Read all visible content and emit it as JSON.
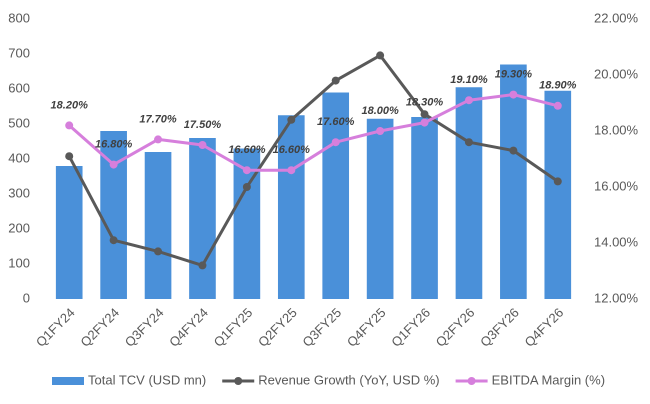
{
  "chart_data": {
    "type": "combo",
    "categories": [
      "Q1FY24",
      "Q2FY24",
      "Q3FY24",
      "Q4FY24",
      "Q1FY25",
      "Q2FY25",
      "Q3FY25",
      "Q4FY25",
      "Q1FY26",
      "Q2FY26",
      "Q3FY26",
      "Q4FY26"
    ],
    "series": [
      {
        "name": "Total TCV (USD mn)",
        "type": "bar",
        "color": "#4a90d9",
        "values": [
          380,
          480,
          420,
          460,
          430,
          525,
          590,
          515,
          520,
          605,
          670,
          595
        ]
      },
      {
        "name": "Revenue Growth (YoY, USD %)",
        "type": "line",
        "axis": "y2",
        "color": "#595959",
        "values": [
          17.1,
          14.1,
          13.7,
          13.2,
          16.0,
          18.4,
          19.8,
          20.7,
          18.6,
          17.6,
          17.3,
          16.2
        ]
      },
      {
        "name": "EBITDA Margin (%)",
        "type": "line",
        "axis": "y2",
        "color": "#d67fdc",
        "values": [
          18.2,
          16.8,
          17.7,
          17.5,
          16.6,
          16.6,
          17.6,
          18.0,
          18.3,
          19.1,
          19.3,
          18.9
        ],
        "value_labels": [
          "18.20%",
          "16.80%",
          "17.70%",
          "17.50%",
          "16.60%",
          "16.60%",
          "17.60%",
          "18.00%",
          "18.30%",
          "19.10%",
          "19.30%",
          "18.90%"
        ]
      }
    ],
    "ylim": [
      0,
      800
    ],
    "yticks": [
      0,
      100,
      200,
      300,
      400,
      500,
      600,
      700,
      800
    ],
    "y2lim": [
      12,
      22
    ],
    "y2ticks": [
      {
        "value": 12,
        "label": "12.00%"
      },
      {
        "value": 14,
        "label": "14.00%"
      },
      {
        "value": 16,
        "label": "16.00%"
      },
      {
        "value": 18,
        "label": "18.00%"
      },
      {
        "value": 20,
        "label": "20.00%"
      },
      {
        "value": 22,
        "label": "22.00%"
      }
    ],
    "grid": false,
    "legend": "bottom"
  }
}
